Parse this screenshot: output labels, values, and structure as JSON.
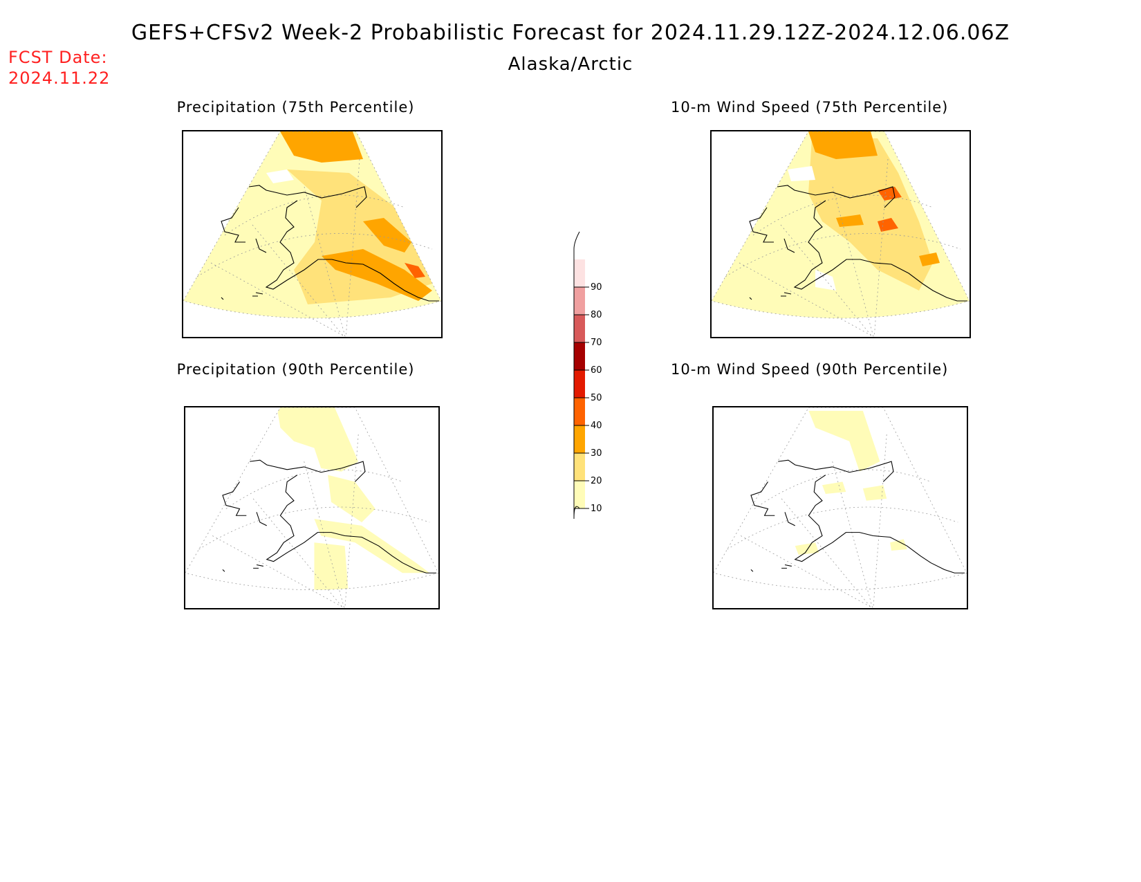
{
  "header": {
    "title": "GEFS+CFSv2 Week-2 Probabilistic Forecast for 2024.11.29.12Z-2024.12.06.06Z",
    "subtitle": "Alaska/Arctic",
    "fcst_label": "FCST Date:",
    "fcst_date": "2024.11.22"
  },
  "panels": [
    {
      "id": "precip75",
      "title": "Precipitation (75th Percentile)",
      "intensity": "high",
      "field": "precip"
    },
    {
      "id": "wind75",
      "title": "10-m Wind Speed (75th Percentile)",
      "intensity": "high",
      "field": "wind"
    },
    {
      "id": "precip90",
      "title": "Precipitation (90th Percentile)",
      "intensity": "low",
      "field": "precip"
    },
    {
      "id": "wind90",
      "title": "10-m Wind Speed (90th Percentile)",
      "intensity": "low",
      "field": "wind"
    }
  ],
  "legend": {
    "levels": [
      "10",
      "20",
      "30",
      "40",
      "50",
      "60",
      "70",
      "80",
      "90"
    ],
    "colors": [
      "#fffcb8",
      "#ffe27a",
      "#ffa500",
      "#ff6300",
      "#e31a00",
      "#a50000",
      "#d85a5a",
      "#f0a0a0",
      "#fde2e2"
    ]
  }
}
